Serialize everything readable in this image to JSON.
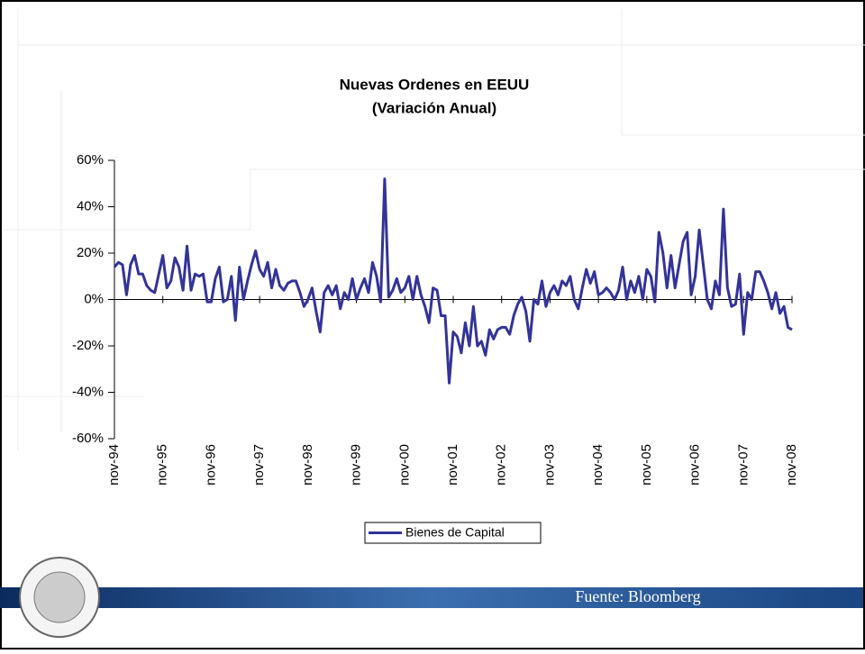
{
  "chart_data": {
    "type": "line",
    "title": "Nuevas Ordenes en EEUU",
    "subtitle": "(Variación Anual)",
    "source": "Fuente: Bloomberg",
    "categories": [
      "nov-94",
      null,
      null,
      null,
      null,
      null,
      null,
      null,
      null,
      null,
      null,
      null,
      "nov-95",
      null,
      null,
      null,
      null,
      null,
      null,
      null,
      null,
      null,
      null,
      null,
      "nov-96",
      null,
      null,
      null,
      null,
      null,
      null,
      null,
      null,
      null,
      null,
      null,
      "nov-97",
      null,
      null,
      null,
      null,
      null,
      null,
      null,
      null,
      null,
      null,
      null,
      "nov-98",
      null,
      null,
      null,
      null,
      null,
      null,
      null,
      null,
      null,
      null,
      null,
      "nov-99",
      null,
      null,
      null,
      null,
      null,
      null,
      null,
      null,
      null,
      null,
      null,
      "nov-00",
      null,
      null,
      null,
      null,
      null,
      null,
      null,
      null,
      null,
      null,
      null,
      "nov-01",
      null,
      null,
      null,
      null,
      null,
      null,
      null,
      null,
      null,
      null,
      null,
      "nov-02",
      null,
      null,
      null,
      null,
      null,
      null,
      null,
      null,
      null,
      null,
      null,
      "nov-03",
      null,
      null,
      null,
      null,
      null,
      null,
      null,
      null,
      null,
      null,
      null,
      "nov-04",
      null,
      null,
      null,
      null,
      null,
      null,
      null,
      null,
      null,
      null,
      null,
      "nov-05",
      null,
      null,
      null,
      null,
      null,
      null,
      null,
      null,
      null,
      null,
      null,
      "nov-06",
      null,
      null,
      null,
      null,
      null,
      null,
      null,
      null,
      null,
      null,
      null,
      "nov-07",
      null,
      null,
      null,
      null,
      null,
      null,
      null,
      null,
      null,
      null,
      null,
      "nov-08"
    ],
    "series": [
      {
        "name": "Bienes de Capital",
        "color": "#333399",
        "values": [
          14,
          16,
          15,
          2,
          15,
          19,
          11,
          11,
          6,
          4,
          3,
          11,
          19,
          5,
          8,
          18,
          14,
          4,
          23,
          4,
          11,
          10,
          11,
          -1,
          -1,
          9,
          14,
          -1,
          0,
          10,
          -9,
          14,
          0,
          8,
          15,
          21,
          13,
          10,
          16,
          5,
          13,
          6,
          4,
          7,
          8,
          8,
          3,
          -3,
          0,
          5,
          -5,
          -14,
          3,
          6,
          2,
          6,
          -4,
          3,
          0,
          9,
          0,
          5,
          9,
          3,
          16,
          10,
          -1,
          52,
          1,
          4,
          9,
          3,
          5,
          10,
          0,
          10,
          2,
          -3,
          -10,
          5,
          4,
          -7,
          -7,
          -36,
          -14,
          -16,
          -23,
          -10,
          -20,
          -3,
          -20,
          -18,
          -24,
          -13,
          -17,
          -13,
          -12,
          -12,
          -15,
          -7,
          -2,
          1,
          -5,
          -18,
          0,
          -2,
          8,
          -3,
          3,
          6,
          2,
          8,
          6,
          10,
          0,
          -4,
          5,
          13,
          7,
          12,
          2,
          3,
          5,
          3,
          0,
          4,
          14,
          0,
          8,
          3,
          10,
          0,
          13,
          10,
          -1,
          29,
          20,
          5,
          19,
          5,
          15,
          25,
          29,
          2,
          10,
          30,
          15,
          0,
          -4,
          8,
          2,
          39,
          5,
          -3,
          -2,
          11,
          -15,
          3,
          0,
          12,
          12,
          8,
          3,
          -4,
          3,
          -6,
          -3,
          -12,
          -13
        ]
      }
    ],
    "ylim": [
      -60,
      60
    ],
    "yticks": [
      {
        "value": -60,
        "label": "-60%"
      },
      {
        "value": -40,
        "label": "-40%"
      },
      {
        "value": -20,
        "label": "-20%"
      },
      {
        "value": 0,
        "label": "0%"
      },
      {
        "value": 20,
        "label": "20%"
      },
      {
        "value": 40,
        "label": "40%"
      },
      {
        "value": 60,
        "label": "60%"
      }
    ],
    "legend": "bottom"
  }
}
